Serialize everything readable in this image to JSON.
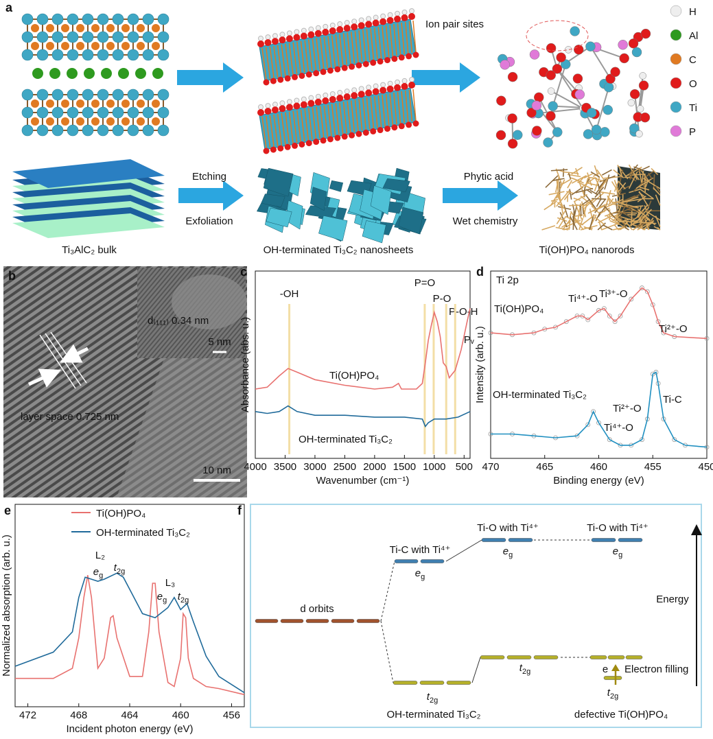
{
  "panel_labels": [
    "a",
    "b",
    "c",
    "d",
    "e",
    "f"
  ],
  "schematic": {
    "ion_pair_label": "Ion pair sites",
    "legend": [
      {
        "symbol": "H",
        "color": "#eeeeee"
      },
      {
        "symbol": "Al",
        "color": "#2e9a1f"
      },
      {
        "symbol": "C",
        "color": "#e07a22"
      },
      {
        "symbol": "O",
        "color": "#e01b1b"
      },
      {
        "symbol": "Ti",
        "color": "#3fa7c4"
      },
      {
        "symbol": "P",
        "color": "#e07ad8"
      }
    ],
    "step1": [
      "Etching",
      "Exfoliation"
    ],
    "step2": [
      "Phytic acid",
      "Wet chemistry"
    ],
    "captions": [
      "Ti₃AlC₂ bulk",
      "OH-terminated Ti₃C₂ nanosheets",
      "Ti(OH)PO₄ nanorods"
    ]
  },
  "tem": {
    "inset_label": "d₍₁₁₁₎ 0.34 nm",
    "inset_scale": "5 nm",
    "layer_label": "layer space 0.725 nm",
    "scale": "10 nm"
  },
  "chart_data": [
    {
      "type": "line",
      "xlabel": "Wavenumber (cm⁻¹)",
      "ylabel": "Absorbance (abs. u.)",
      "xlim": [
        4000,
        400
      ],
      "xticks": [
        4000,
        3500,
        3000,
        2500,
        2000,
        1500,
        1000,
        500
      ],
      "ylim": [
        0,
        100
      ],
      "legend": "inline",
      "series": [
        {
          "name": "Ti(OH)PO₄",
          "color": "#e8716f",
          "x": [
            4000,
            3800,
            3600,
            3450,
            3300,
            3000,
            2500,
            2000,
            1700,
            1600,
            1550,
            1300,
            1200,
            1150,
            1100,
            1050,
            1000,
            950,
            900,
            850,
            800,
            750,
            700,
            650,
            550,
            450,
            400
          ],
          "values": [
            37,
            38,
            44,
            48,
            46,
            42,
            39,
            37,
            38,
            40,
            37,
            37,
            40,
            51,
            63,
            71,
            78,
            73,
            65,
            51,
            49,
            43,
            45,
            47,
            58,
            73,
            80
          ]
        },
        {
          "name": "OH-terminated Ti₃C₂",
          "color": "#1f6a9a",
          "x": [
            4000,
            3800,
            3600,
            3450,
            3300,
            3000,
            2500,
            2000,
            1500,
            1200,
            1150,
            1100,
            1000,
            800,
            600,
            400
          ],
          "values": [
            25,
            24,
            25,
            28,
            25,
            23,
            23,
            22,
            22,
            21,
            17,
            19,
            21,
            21,
            22,
            25
          ]
        }
      ],
      "markers": [
        {
          "label": "-OH",
          "x": 3430
        },
        {
          "label": "P=O",
          "x": 1160
        },
        {
          "label": "P-O",
          "x": 1010
        },
        {
          "label": "P-O-H",
          "x": 800
        },
        {
          "label": "Pᵥ",
          "x": 650
        }
      ],
      "marker_color": "#f3dea6"
    },
    {
      "type": "line",
      "xlabel": "Binding energy (eV)",
      "ylabel": "Intensity (arb. u.)",
      "xlim": [
        470,
        450
      ],
      "xticks": [
        470,
        465,
        460,
        455,
        450
      ],
      "ylim": [
        0,
        100
      ],
      "legend": "inline",
      "spectrum_label": "Ti 2p",
      "series": [
        {
          "name": "Ti(OH)PO₄",
          "color": "#e8716f",
          "x": [
            470,
            468,
            466,
            465,
            464,
            463,
            462,
            461.5,
            461,
            460,
            459.5,
            459,
            458.5,
            458,
            457,
            456,
            455.5,
            455,
            454.5,
            454,
            453,
            450
          ],
          "values": [
            67,
            66,
            67,
            69,
            70,
            73,
            76,
            76,
            74,
            79,
            80,
            76,
            73,
            76,
            85,
            91,
            89,
            82,
            73,
            67,
            65,
            64
          ]
        },
        {
          "name": "OH-terminated Ti₃C₂",
          "color": "#1f8fc0",
          "x": [
            470,
            468,
            466,
            464,
            462,
            461,
            460.5,
            460,
            459,
            458,
            457,
            456,
            455.5,
            455,
            454.7,
            454.5,
            454,
            453,
            452,
            450
          ],
          "values": [
            13,
            13,
            12,
            11,
            12,
            18,
            25,
            19,
            10,
            7,
            7,
            10,
            21,
            45,
            46,
            40,
            21,
            10,
            7,
            6
          ]
        }
      ],
      "components": [
        "Ti⁴⁺-O",
        "Ti³⁺-O",
        "Ti²⁺-O",
        "Ti-C",
        "Ti²⁺-O",
        "Ti⁴⁺-O"
      ]
    },
    {
      "type": "line",
      "xlabel": "Incident photon energy (eV)",
      "ylabel": "Normalized absorption (arb. u.)",
      "xlim": [
        473,
        455
      ],
      "xticks": [
        472,
        468,
        464,
        460,
        456
      ],
      "ylim": [
        0,
        100
      ],
      "legend": "upper left",
      "series": [
        {
          "name": "Ti(OH)PO₄",
          "color": "#e8716f",
          "x": [
            473,
            470,
            468.5,
            468,
            467.6,
            467.3,
            467,
            466.5,
            466,
            465.5,
            465.3,
            465,
            464,
            463,
            462.5,
            462.2,
            462,
            461.7,
            461,
            460.5,
            460,
            459.8,
            459.6,
            459.4,
            459,
            458,
            457,
            455
          ],
          "values": [
            14,
            14,
            19,
            34,
            54,
            65,
            54,
            19,
            24,
            44,
            45,
            34,
            15,
            15,
            37,
            61,
            61,
            37,
            12,
            10,
            24,
            46,
            44,
            24,
            14,
            10,
            9,
            6
          ]
        },
        {
          "name": "OH-terminated Ti₃C₂",
          "color": "#1f6a9a",
          "x": [
            473,
            470,
            468.5,
            468,
            467.5,
            467,
            466.5,
            466,
            465,
            464.5,
            464,
            463,
            462,
            461,
            460.5,
            460,
            459.5,
            459,
            458,
            457,
            455
          ],
          "values": [
            20,
            27,
            37,
            54,
            64,
            63,
            62,
            63,
            66,
            64,
            58,
            46,
            44,
            49,
            54,
            48,
            51,
            42,
            25,
            15,
            7
          ]
        }
      ],
      "edge_labels": [
        "L₂",
        "L₃"
      ],
      "peak_labels": [
        {
          "base": "e",
          "sub": "g"
        },
        {
          "base": "t",
          "sub": "2g"
        },
        {
          "base": "e",
          "sub": "g"
        },
        {
          "base": "t",
          "sub": "2g"
        }
      ]
    }
  ],
  "diagram": {
    "d_orbits": "d orbits",
    "tic_label": "Ti-C with Ti⁴⁺",
    "tio_labels": [
      "Ti-O with Ti⁴⁺",
      "Ti-O with Ti⁴⁺"
    ],
    "eg": [
      {
        "base": "e",
        "sub": "g"
      },
      {
        "base": "e",
        "sub": "g"
      },
      {
        "base": "e",
        "sub": "g"
      }
    ],
    "t2g": [
      {
        "base": "t",
        "sub": "2g"
      },
      {
        "base": "t",
        "sub": "2g"
      },
      {
        "base": "t",
        "sub": "2g"
      }
    ],
    "left_caption": "OH-terminated Ti₃C₂",
    "right_caption": "defective Ti(OH)PO₄",
    "energy": "Energy",
    "electron": "e",
    "electron_filling": "Electron filling"
  }
}
